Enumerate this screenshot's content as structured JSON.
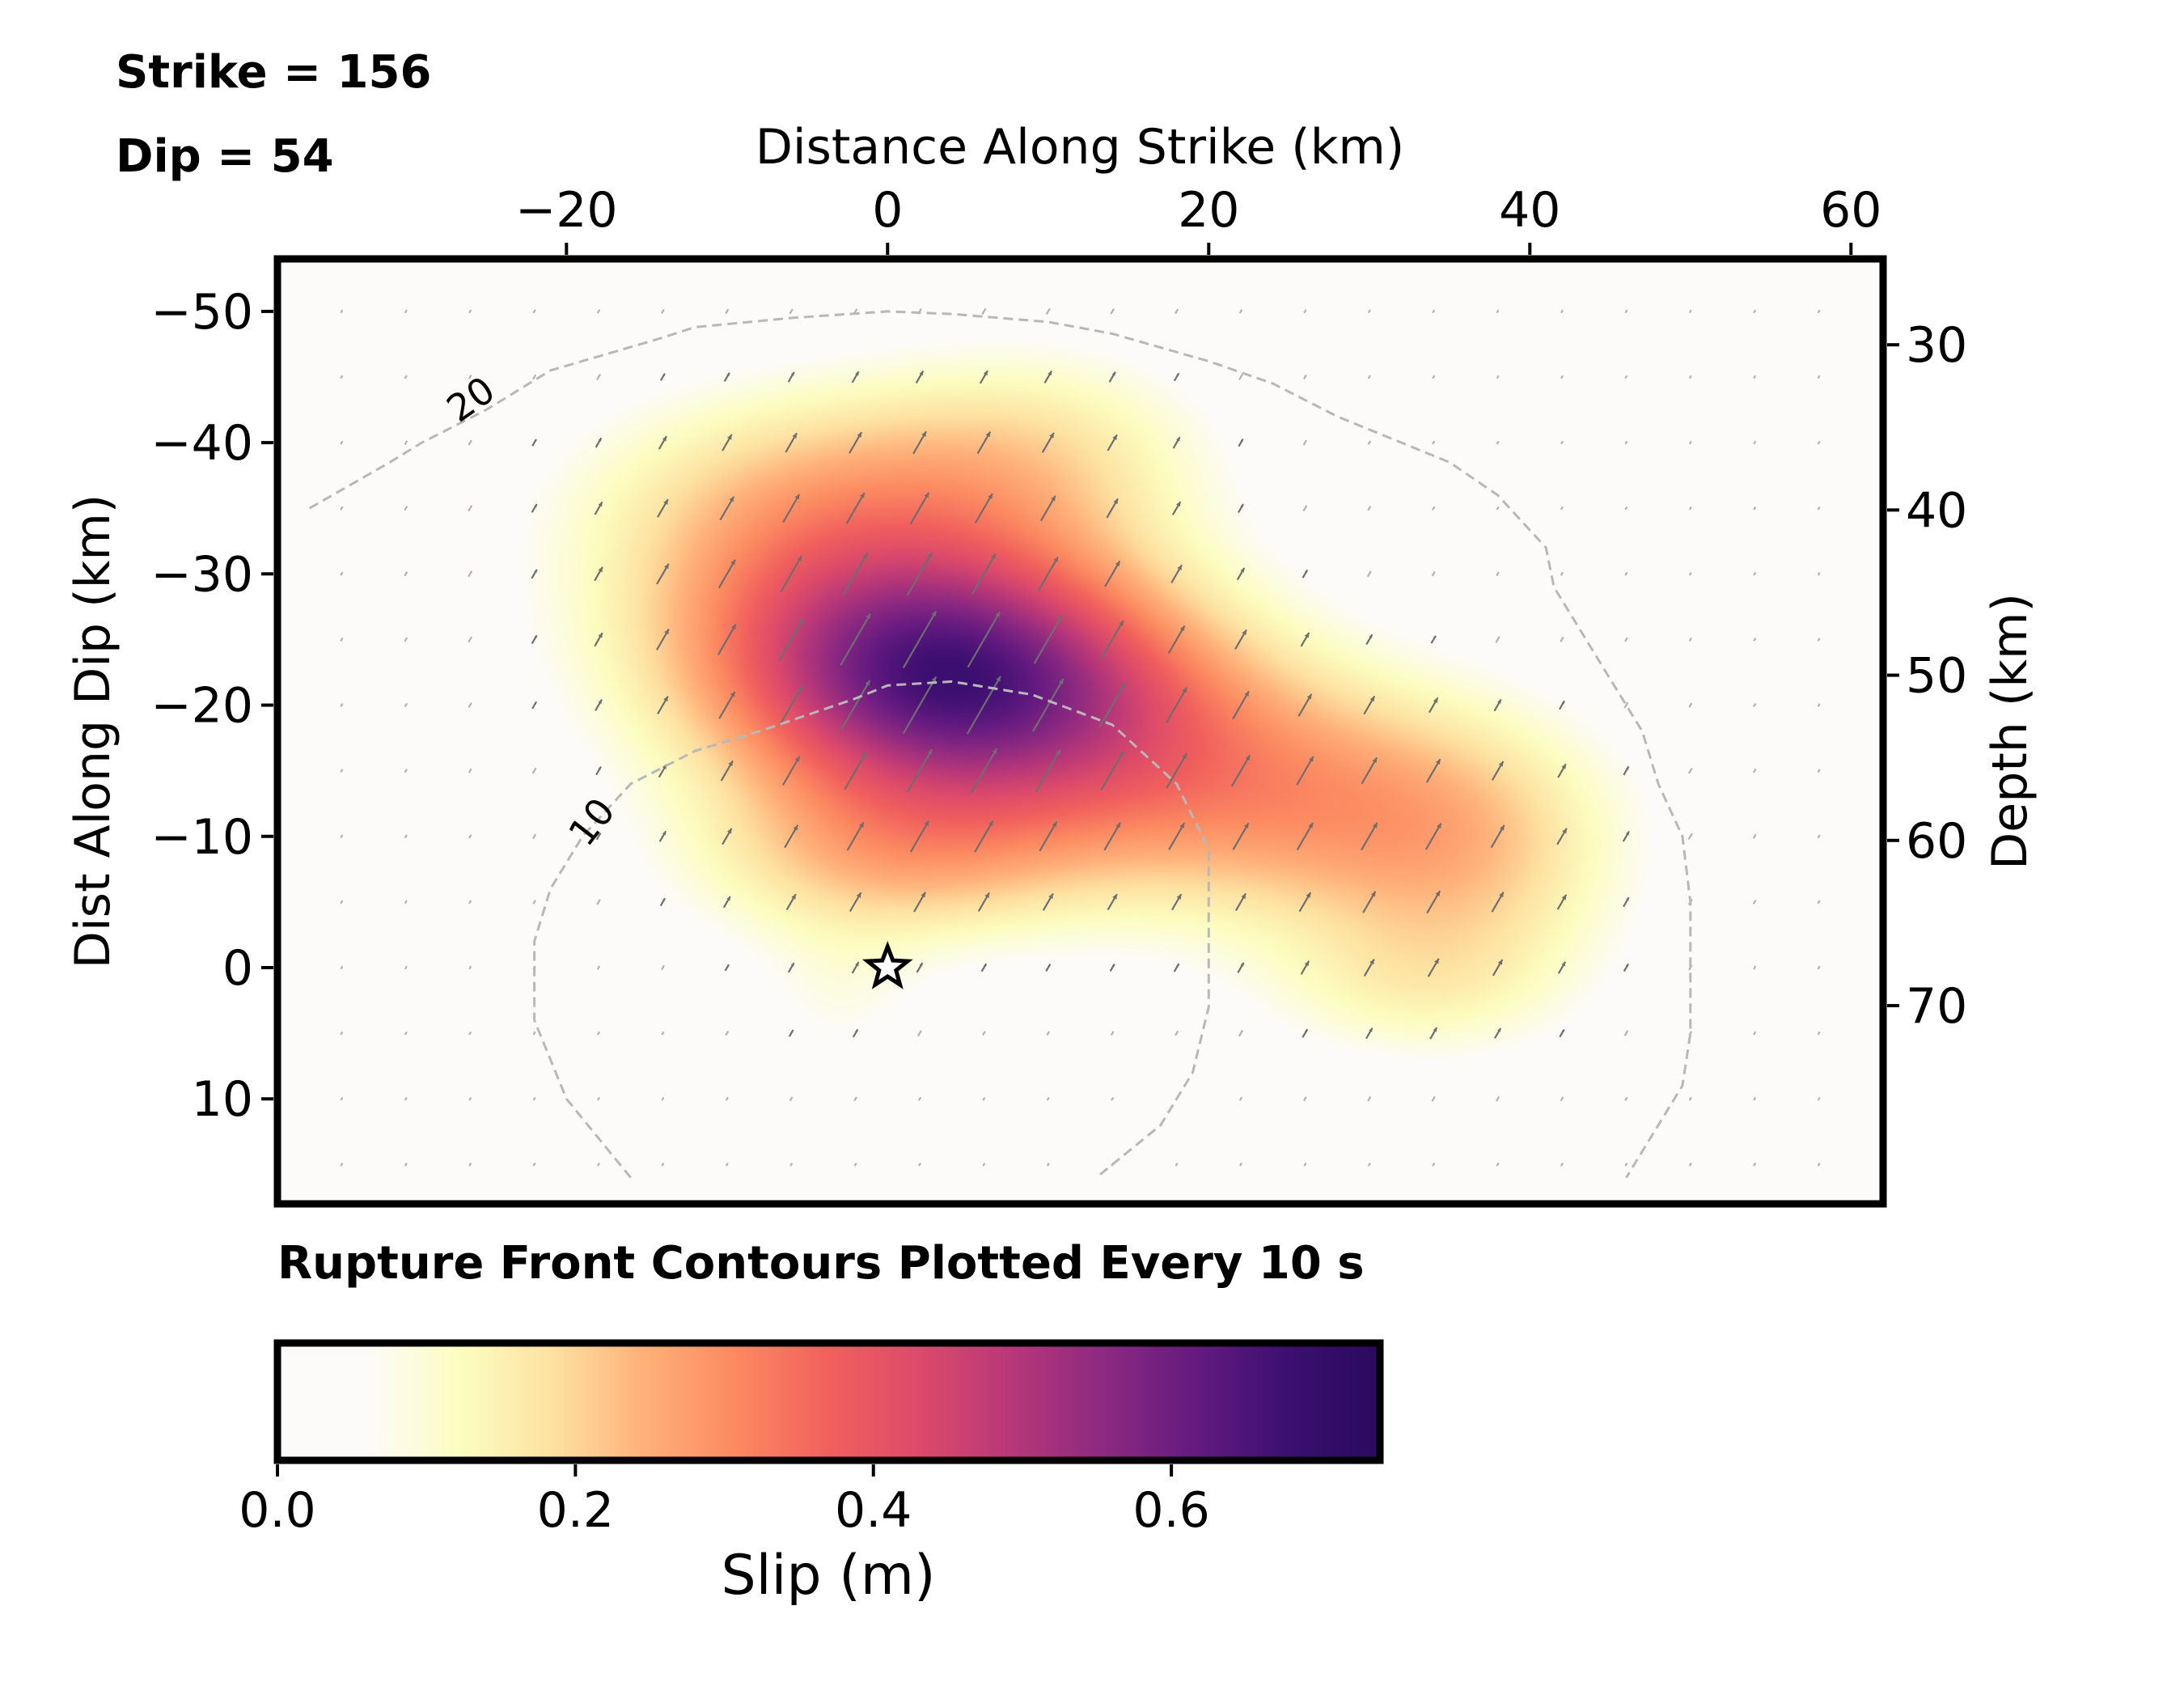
{
  "header": {
    "strike": "Strike = 156",
    "dip": "Dip = 54"
  },
  "footer": {
    "contour_note": "Rupture Front Contours Plotted Every 10 s"
  },
  "chart_data": {
    "type": "heatmap",
    "title": "",
    "xlabel": "Distance Along Strike (km)",
    "ylabel_left": "Dist Along Dip (km)",
    "ylabel_right": "Depth (km)",
    "xlim": [
      -38,
      62
    ],
    "ylim_dip": [
      -54,
      18
    ],
    "ylim_depth": [
      24.8,
      82
    ],
    "x_ticks": [
      -20,
      0,
      20,
      40,
      60
    ],
    "x_tick_labels": [
      "−20",
      "0",
      "20",
      "40",
      "60"
    ],
    "dip_ticks": [
      -50,
      -40,
      -30,
      -20,
      -10,
      0,
      10
    ],
    "dip_tick_labels": [
      "−50",
      "−40",
      "−30",
      "−20",
      "−10",
      "0",
      "10"
    ],
    "depth_ticks": [
      30,
      40,
      50,
      60,
      70
    ],
    "depth_tick_labels": [
      "30",
      "40",
      "50",
      "60",
      "70"
    ],
    "hypocenter": {
      "x": 0,
      "dip": 0,
      "marker": "star"
    },
    "slip_patches": [
      {
        "x": 4,
        "dip": -22,
        "sx": 9,
        "sy": 7,
        "amp": 0.5
      },
      {
        "x": -6,
        "dip": -27,
        "sx": 10,
        "sy": 9,
        "amp": 0.2
      },
      {
        "x": 16,
        "dip": -18,
        "sx": 9,
        "sy": 8,
        "amp": 0.18
      },
      {
        "x": 28,
        "dip": -12,
        "sx": 10,
        "sy": 7,
        "amp": 0.2
      },
      {
        "x": 37,
        "dip": -7,
        "sx": 7,
        "sy": 8,
        "amp": 0.12
      },
      {
        "x": -2,
        "dip": -37,
        "sx": 12,
        "sy": 6,
        "amp": 0.12
      },
      {
        "x": 10,
        "dip": -40,
        "sx": 8,
        "sy": 6,
        "amp": 0.1
      },
      {
        "x": 0,
        "dip": -8,
        "sx": 9,
        "sy": 5,
        "amp": 0.18
      },
      {
        "x": -3,
        "dip": 3,
        "sx": 4,
        "sy": 4,
        "amp": 0.06
      },
      {
        "x": 32,
        "dip": 2,
        "sx": 7,
        "sy": 4,
        "amp": 0.08
      }
    ],
    "rake_arrows": {
      "grid_dx_km": 4,
      "grid_ddip_km": 5,
      "rake_deg": 60
    },
    "rupture_contours": [
      {
        "label": "10",
        "points": [
          [
            -16,
            16
          ],
          [
            -20,
            10
          ],
          [
            -22,
            4
          ],
          [
            -22,
            -2
          ],
          [
            -21,
            -6
          ],
          [
            -19,
            -10
          ],
          [
            -16,
            -14
          ],
          [
            -12,
            -16.5
          ],
          [
            -8,
            -18
          ],
          [
            -2,
            -20.5
          ],
          [
            0,
            -21.5
          ],
          [
            4,
            -21.8
          ],
          [
            9,
            -20.8
          ],
          [
            14,
            -18.5
          ],
          [
            18,
            -14
          ],
          [
            20,
            -9
          ],
          [
            20,
            -3
          ],
          [
            20,
            3
          ],
          [
            19,
            8
          ],
          [
            17,
            12
          ],
          [
            13,
            16
          ]
        ]
      },
      {
        "label": "20",
        "points": [
          [
            -36,
            -35
          ],
          [
            -31,
            -38.5
          ],
          [
            -29,
            -40
          ],
          [
            -25,
            -42.5
          ],
          [
            -21,
            -45.5
          ],
          [
            -14,
            -48
          ],
          [
            -12,
            -48.8
          ],
          [
            -6,
            -49.5
          ],
          [
            0,
            -50
          ],
          [
            4,
            -49.8
          ],
          [
            10,
            -49.2
          ],
          [
            14,
            -48.3
          ],
          [
            20,
            -46.2
          ],
          [
            24,
            -44.5
          ],
          [
            28,
            -42
          ],
          [
            31,
            -40.5
          ],
          [
            35,
            -38.5
          ],
          [
            38,
            -36
          ],
          [
            41,
            -32
          ],
          [
            41.5,
            -29
          ],
          [
            45,
            -22
          ],
          [
            47,
            -18
          ],
          [
            48,
            -14
          ],
          [
            49.5,
            -10
          ],
          [
            50,
            -5
          ],
          [
            50,
            0
          ],
          [
            50,
            5
          ],
          [
            49.5,
            9
          ],
          [
            48,
            12
          ],
          [
            46,
            16
          ]
        ]
      }
    ],
    "colorbar": {
      "label": "Slip (m)",
      "range": [
        0,
        0.74
      ],
      "ticks": [
        0.0,
        0.2,
        0.4,
        0.6
      ],
      "tick_labels": [
        "0.0",
        "0.2",
        "0.4",
        "0.6"
      ],
      "colormap": "magma_r",
      "stops": [
        "#fcfbf9",
        "#fcfbf9",
        "#fcfdbf",
        "#fde1a1",
        "#feb078",
        "#fc8961",
        "#f1605d",
        "#dc4a6b",
        "#b73779",
        "#8c2981",
        "#641a80",
        "#3b0f70",
        "#2a0a5e"
      ]
    }
  }
}
